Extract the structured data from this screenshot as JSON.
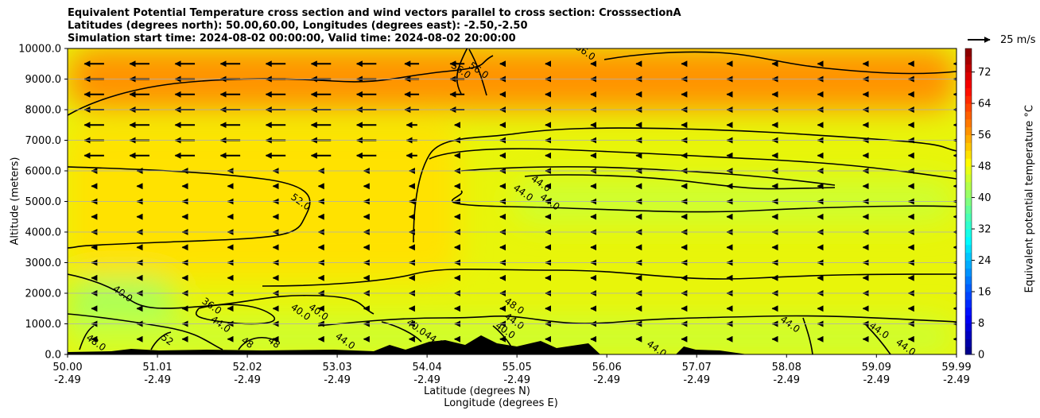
{
  "figure": {
    "title_lines": [
      "Equivalent Potential Temperature cross section and wind vectors parallel to cross section: CrosssectionA",
      "Latitudes (degrees north): 50.00,60.00, Longitudes (degrees east): -2.50,-2.50",
      "Simulation start time: 2024-08-02 00:00:00, Valid time: 2024-08-02 20:00:00"
    ],
    "quiver_key_label": "25 m/s",
    "colorbar_label": "Equivalent potential temperature $^\\circ$C"
  },
  "chart_data": {
    "type": "heatmap",
    "subtype": "filled-contour cross section with contour lines and wind vectors",
    "title": "Equivalent Potential Temperature cross section and wind vectors parallel to cross section: CrosssectionA",
    "xlabel_lines": [
      "Latitude (degrees N)",
      "Longitude (degrees E)"
    ],
    "ylabel": "Altitude (meters)",
    "xlim": [
      50.0,
      59.99
    ],
    "ylim": [
      0,
      10000
    ],
    "x_ticks": [
      {
        "lat": "50.00",
        "lon": "-2.49",
        "value": 50.0
      },
      {
        "lat": "51.01",
        "lon": "-2.49",
        "value": 51.01
      },
      {
        "lat": "52.02",
        "lon": "-2.49",
        "value": 52.02
      },
      {
        "lat": "53.03",
        "lon": "-2.49",
        "value": 53.03
      },
      {
        "lat": "54.04",
        "lon": "-2.49",
        "value": 54.04
      },
      {
        "lat": "55.05",
        "lon": "-2.49",
        "value": 55.05
      },
      {
        "lat": "56.06",
        "lon": "-2.49",
        "value": 56.06
      },
      {
        "lat": "57.07",
        "lon": "-2.49",
        "value": 57.07
      },
      {
        "lat": "58.08",
        "lon": "-2.49",
        "value": 58.08
      },
      {
        "lat": "59.09",
        "lon": "-2.49",
        "value": 59.09
      },
      {
        "lat": "59.99",
        "lon": "-2.49",
        "value": 59.99
      }
    ],
    "y_ticks": [
      "0.0",
      "1000.0",
      "2000.0",
      "3000.0",
      "4000.0",
      "5000.0",
      "6000.0",
      "7000.0",
      "8000.0",
      "9000.0",
      "10000.0"
    ],
    "grid": "horizontal lines at each y tick",
    "colormap": "jet",
    "colorbar": {
      "min": 0,
      "max": 78,
      "step": 2,
      "tick_labels": [
        "0",
        "8",
        "16",
        "24",
        "32",
        "40",
        "48",
        "56",
        "64",
        "72"
      ],
      "location": "right"
    },
    "field_zones": [
      {
        "lat_range": [
          50.0,
          51.2
        ],
        "alt_range": [
          0,
          2500
        ],
        "theta_e": 42
      },
      {
        "lat_range": [
          50.0,
          59.99
        ],
        "alt_range": [
          0,
          1200
        ],
        "theta_e": 45
      },
      {
        "lat_range": [
          50.0,
          54.4
        ],
        "alt_range": [
          2500,
          7500
        ],
        "theta_e": 51
      },
      {
        "lat_range": [
          55.0,
          59.99
        ],
        "alt_range": [
          4300,
          5700
        ],
        "theta_e": 45
      },
      {
        "lat_range": [
          50.0,
          59.99
        ],
        "alt_range": [
          8000,
          10000
        ],
        "theta_e": 57
      }
    ],
    "contour_labels": [
      {
        "text": "56.0",
        "lat": 54.4,
        "alt": 9200
      },
      {
        "text": "56.0",
        "lat": 54.6,
        "alt": 9200
      },
      {
        "text": "56.0",
        "lat": 55.8,
        "alt": 9800
      },
      {
        "text": "52.0",
        "lat": 52.6,
        "alt": 4900
      },
      {
        "text": "44.0",
        "lat": 55.3,
        "alt": 5500
      },
      {
        "text": "44.0",
        "lat": 55.1,
        "alt": 5200
      },
      {
        "text": "44.0",
        "lat": 55.4,
        "alt": 4900
      },
      {
        "text": "40.0",
        "lat": 50.6,
        "alt": 1900
      },
      {
        "text": "36.0",
        "lat": 51.6,
        "alt": 1500
      },
      {
        "text": "40.0",
        "lat": 52.6,
        "alt": 1300
      },
      {
        "text": "40.0",
        "lat": 52.8,
        "alt": 1300
      },
      {
        "text": "44.0",
        "lat": 51.7,
        "alt": 900
      },
      {
        "text": "48.0",
        "lat": 50.3,
        "alt": 300
      },
      {
        "text": "52",
        "lat": 51.1,
        "alt": 400
      },
      {
        "text": "48",
        "lat": 52.0,
        "alt": 300
      },
      {
        "text": "48",
        "lat": 52.3,
        "alt": 300
      },
      {
        "text": "44.0",
        "lat": 53.1,
        "alt": 350
      },
      {
        "text": "40.0",
        "lat": 53.9,
        "alt": 800
      },
      {
        "text": "44.0",
        "lat": 54.1,
        "alt": 400
      },
      {
        "text": "48.0",
        "lat": 55.0,
        "alt": 1500
      },
      {
        "text": "44.0",
        "lat": 55.0,
        "alt": 1000
      },
      {
        "text": "40.0",
        "lat": 54.9,
        "alt": 700
      },
      {
        "text": "44.0",
        "lat": 56.6,
        "alt": 100
      },
      {
        "text": "44.0",
        "lat": 58.1,
        "alt": 900
      },
      {
        "text": "44.0",
        "lat": 59.1,
        "alt": 700
      },
      {
        "text": "44.0",
        "lat": 59.4,
        "alt": 150
      }
    ],
    "wind": {
      "direction": "southward (toward decreasing latitude) along the section",
      "reference_speed_m_s": 25,
      "levels_m": [
        500,
        1000,
        1500,
        2000,
        2500,
        3000,
        3500,
        4000,
        4500,
        5000,
        5500,
        6000,
        6500,
        7000,
        7500,
        8000,
        8500,
        9000,
        9500
      ],
      "strong_region": {
        "lat_range": [
          50.3,
          53.8
        ],
        "alt_range": [
          6500,
          9500
        ],
        "speed_m_s": 22
      },
      "typical_speed_m_s": 6
    },
    "terrain": "black orography near surface, peaks up to about 600 m near 54.6 N and 56.0 N"
  }
}
